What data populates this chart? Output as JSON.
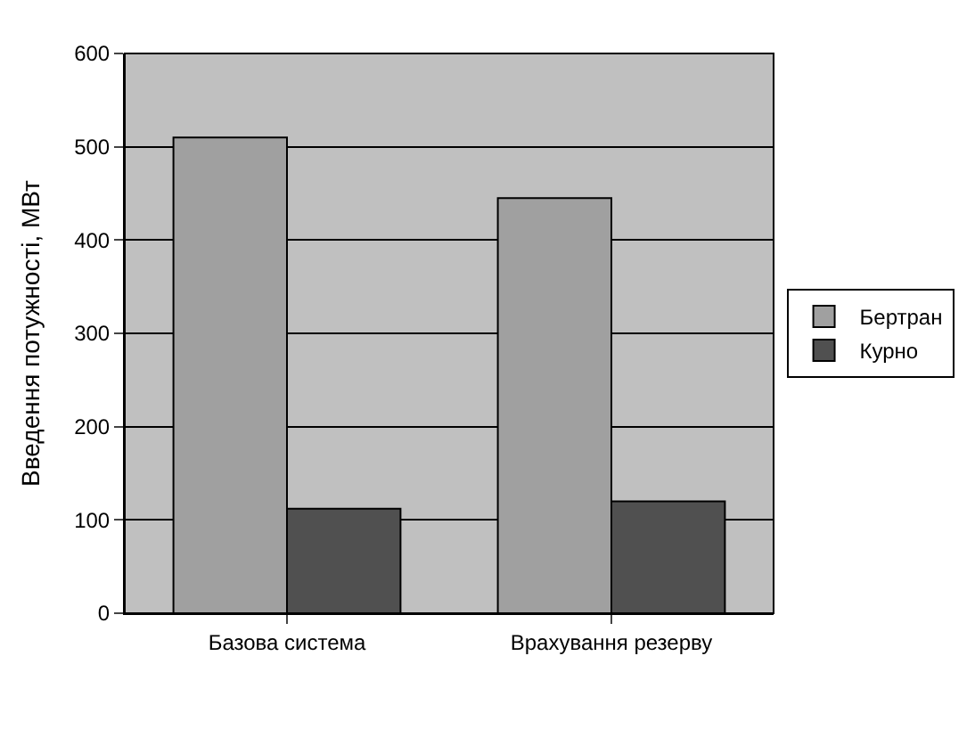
{
  "chart_data": {
    "type": "bar",
    "ylabel": "Введення потужності, МВт",
    "categories": [
      "Базова система",
      "Врахування резерву"
    ],
    "series": [
      {
        "name": "Бертран",
        "color": "#a0a0a0",
        "values": [
          510,
          445
        ]
      },
      {
        "name": "Курно",
        "color": "#505050",
        "values": [
          112,
          120
        ]
      }
    ],
    "ylim": [
      0,
      600
    ],
    "yticks": [
      0,
      100,
      200,
      300,
      400,
      500,
      600
    ],
    "grid": "y",
    "legend": "right"
  }
}
